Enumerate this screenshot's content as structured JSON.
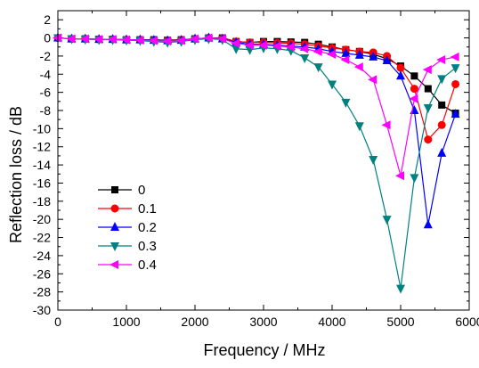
{
  "chart_data": {
    "type": "line",
    "xlabel": "Frequency / MHz",
    "ylabel": "Reflection loss / dB",
    "xlim": [
      0,
      6000
    ],
    "ylim": [
      -30,
      3
    ],
    "xticks": [
      0,
      1000,
      2000,
      3000,
      4000,
      5000,
      6000
    ],
    "yticks": [
      2,
      0,
      -2,
      -4,
      -6,
      -8,
      -10,
      -12,
      -14,
      -16,
      -18,
      -20,
      -22,
      -24,
      -26,
      -28,
      -30
    ],
    "grid": false,
    "legend_position": "center-left",
    "x": [
      0,
      200,
      400,
      600,
      800,
      1000,
      1200,
      1400,
      1600,
      1800,
      2000,
      2200,
      2400,
      2600,
      2800,
      3000,
      3200,
      3400,
      3600,
      3800,
      4000,
      4200,
      4400,
      4600,
      4800,
      5000,
      5200,
      5400,
      5600,
      5800
    ],
    "series": [
      {
        "name": "0",
        "color": "#000000",
        "marker": "square",
        "values": [
          0,
          -0.1,
          -0.1,
          -0.15,
          -0.15,
          -0.2,
          -0.2,
          -0.2,
          -0.25,
          -0.2,
          -0.1,
          0,
          0,
          -0.4,
          -0.5,
          -0.4,
          -0.4,
          -0.45,
          -0.5,
          -0.7,
          -1.0,
          -1.3,
          -1.5,
          -1.8,
          -2.3,
          -3.1,
          -4.2,
          -5.6,
          -7.4,
          -8.3
        ]
      },
      {
        "name": "0.1",
        "color": "#ff0000",
        "marker": "circle",
        "values": [
          0,
          -0.1,
          -0.1,
          -0.15,
          -0.15,
          -0.2,
          -0.2,
          -0.25,
          -0.25,
          -0.2,
          -0.1,
          0,
          -0.05,
          -0.4,
          -0.5,
          -0.5,
          -0.55,
          -0.6,
          -0.7,
          -0.9,
          -1.1,
          -1.3,
          -1.5,
          -1.6,
          -2.0,
          -3.3,
          -5.6,
          -11.2,
          -9.6,
          -5.1
        ]
      },
      {
        "name": "0.2",
        "color": "#0000ff",
        "marker": "triangle-up",
        "values": [
          0,
          -0.1,
          -0.1,
          -0.15,
          -0.15,
          -0.2,
          -0.2,
          -0.25,
          -0.3,
          -0.25,
          -0.1,
          0,
          -0.1,
          -0.5,
          -0.7,
          -0.7,
          -0.8,
          -0.9,
          -1.0,
          -1.2,
          -1.5,
          -1.7,
          -1.9,
          -2.1,
          -2.5,
          -4.2,
          -8.0,
          -20.6,
          -12.7,
          -8.4
        ]
      },
      {
        "name": "0.3",
        "color": "#008080",
        "marker": "triangle-down",
        "values": [
          0,
          -0.1,
          -0.15,
          -0.2,
          -0.2,
          -0.25,
          -0.3,
          -0.4,
          -0.5,
          -0.4,
          -0.2,
          -0.1,
          -0.2,
          -1.2,
          -1.3,
          -1.1,
          -1.2,
          -1.4,
          -2.2,
          -3.2,
          -5.1,
          -7.1,
          -9.7,
          -13.4,
          -20.0,
          -27.6,
          -15.4,
          -7.7,
          -4.5,
          -3.3
        ]
      },
      {
        "name": "0.4",
        "color": "#ff00ff",
        "marker": "triangle-left",
        "values": [
          0,
          -0.1,
          -0.1,
          -0.15,
          -0.15,
          -0.2,
          -0.25,
          -0.3,
          -0.35,
          -0.3,
          -0.1,
          0,
          -0.1,
          -0.6,
          -0.8,
          -0.8,
          -0.9,
          -1.0,
          -1.2,
          -1.5,
          -1.8,
          -2.4,
          -3.2,
          -4.6,
          -9.6,
          -15.2,
          -6.7,
          -3.5,
          -2.4,
          -2.1
        ]
      }
    ]
  }
}
